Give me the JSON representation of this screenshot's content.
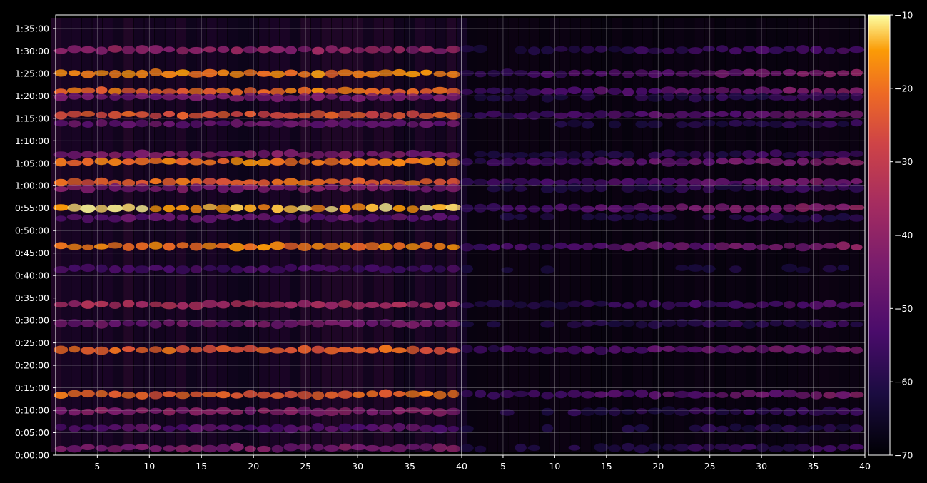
{
  "chart_data": {
    "type": "heatmap",
    "title": "",
    "xlabel": "",
    "ylabel": "",
    "grid": true,
    "colormap": "inferno",
    "background": "#000000",
    "axis_color": "#ffffff",
    "panels": [
      {
        "name": "",
        "xlim": [
          1,
          40
        ],
        "xticks": [
          5,
          10,
          15,
          20,
          25,
          30,
          35,
          40
        ],
        "xtick_labels": [
          "5",
          "10",
          "15",
          "20",
          "25",
          "30",
          "35",
          "40"
        ],
        "intensity_scale": 1.0
      },
      {
        "name": "",
        "xlim": [
          1,
          40
        ],
        "xticks": [
          5,
          10,
          15,
          20,
          25,
          30,
          35,
          40
        ],
        "xtick_labels": [
          "5",
          "10",
          "15",
          "20",
          "25",
          "30",
          "35",
          "40"
        ],
        "intensity_scale": 0.55
      }
    ],
    "y_unit": "seconds",
    "ylim": [
      0,
      5880
    ],
    "yticks": [
      0,
      300,
      600,
      900,
      1200,
      1500,
      1800,
      2100,
      2400,
      2700,
      3000,
      3300,
      3600,
      3900,
      4200,
      4500,
      4800,
      5100,
      5400,
      5700
    ],
    "ytick_labels": [
      "0:00:00",
      "0:05:00",
      "0:10:00",
      "0:15:00",
      "0:20:00",
      "0:25:00",
      "0:30:00",
      "0:35:00",
      "0:40:00",
      "0:45:00",
      "0:50:00",
      "0:55:00",
      "1:00:00",
      "1:05:00",
      "1:10:00",
      "1:15:00",
      "1:20:00",
      "1:25:00",
      "1:30:00",
      "1:35:00"
    ],
    "colorbar": {
      "range": [
        -70,
        -10
      ],
      "ticks": [
        -70,
        -60,
        -50,
        -40,
        -30,
        -20,
        -10
      ],
      "tick_labels": [
        "−70",
        "−60",
        "−50",
        "−40",
        "−30",
        "−20",
        "−10"
      ]
    },
    "bands": [
      {
        "t": 5100,
        "value": -18
      },
      {
        "t": 4860,
        "value": -20
      },
      {
        "t": 4545,
        "value": -24
      },
      {
        "t": 3920,
        "value": -19
      },
      {
        "t": 3645,
        "value": -22
      },
      {
        "t": 3300,
        "value": -14
      },
      {
        "t": 2790,
        "value": -18
      },
      {
        "t": 2010,
        "value": -36
      },
      {
        "t": 1410,
        "value": -22
      },
      {
        "t": 810,
        "value": -22
      },
      {
        "t": 585,
        "value": -42
      },
      {
        "t": 95,
        "value": -44
      },
      {
        "t": 5415,
        "value": -40
      },
      {
        "t": 4425,
        "value": -48
      },
      {
        "t": 4780,
        "value": -46
      },
      {
        "t": 4020,
        "value": -44
      },
      {
        "t": 3565,
        "value": -44
      },
      {
        "t": 3170,
        "value": -50
      },
      {
        "t": 1755,
        "value": -46
      },
      {
        "t": 2490,
        "value": -54
      },
      {
        "t": 360,
        "value": -50
      }
    ]
  }
}
